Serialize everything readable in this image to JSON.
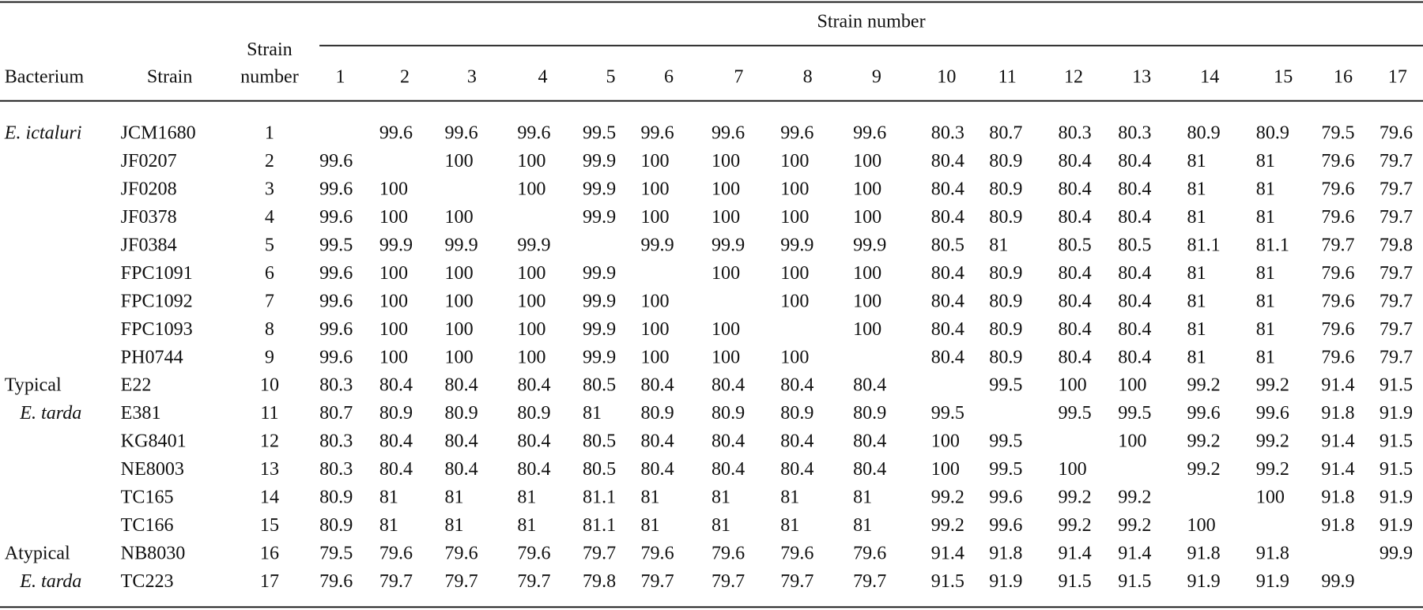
{
  "table": {
    "headers": {
      "bacterium": "Bacterium",
      "strain": "Strain",
      "strain_number": [
        "Strain",
        "number"
      ],
      "span": "Strain number",
      "columns": [
        1,
        2,
        3,
        4,
        5,
        6,
        7,
        8,
        9,
        10,
        11,
        12,
        13,
        14,
        15,
        16,
        17
      ]
    },
    "rows": [
      {
        "bacterium": "E. ictaluri",
        "strain": "JCM1680",
        "number": 1,
        "values": [
          null,
          99.6,
          99.6,
          99.6,
          99.5,
          99.6,
          99.6,
          99.6,
          99.6,
          80.3,
          80.7,
          80.3,
          80.3,
          80.9,
          80.9,
          79.5,
          79.6
        ]
      },
      {
        "strain": "JF0207",
        "number": 2,
        "values": [
          99.6,
          null,
          100,
          100,
          99.9,
          100,
          100,
          100,
          100,
          80.4,
          80.9,
          80.4,
          80.4,
          81,
          81,
          79.6,
          79.7
        ]
      },
      {
        "strain": "JF0208",
        "number": 3,
        "values": [
          99.6,
          100,
          null,
          100,
          99.9,
          100,
          100,
          100,
          100,
          80.4,
          80.9,
          80.4,
          80.4,
          81,
          81,
          79.6,
          79.7
        ]
      },
      {
        "strain": "JF0378",
        "number": 4,
        "values": [
          99.6,
          100,
          100,
          null,
          99.9,
          100,
          100,
          100,
          100,
          80.4,
          80.9,
          80.4,
          80.4,
          81,
          81,
          79.6,
          79.7
        ]
      },
      {
        "strain": "JF0384",
        "number": 5,
        "values": [
          99.5,
          99.9,
          99.9,
          99.9,
          null,
          99.9,
          99.9,
          99.9,
          99.9,
          80.5,
          81,
          80.5,
          80.5,
          81.1,
          81.1,
          79.7,
          79.8
        ]
      },
      {
        "strain": "FPC1091",
        "number": 6,
        "values": [
          99.6,
          100,
          100,
          100,
          99.9,
          null,
          100,
          100,
          100,
          80.4,
          80.9,
          80.4,
          80.4,
          81,
          81,
          79.6,
          79.7
        ]
      },
      {
        "strain": "FPC1092",
        "number": 7,
        "values": [
          99.6,
          100,
          100,
          100,
          99.9,
          100,
          null,
          100,
          100,
          80.4,
          80.9,
          80.4,
          80.4,
          81,
          81,
          79.6,
          79.7
        ]
      },
      {
        "strain": "FPC1093",
        "number": 8,
        "values": [
          99.6,
          100,
          100,
          100,
          99.9,
          100,
          100,
          null,
          100,
          80.4,
          80.9,
          80.4,
          80.4,
          81,
          81,
          79.6,
          79.7
        ]
      },
      {
        "strain": "PH0744",
        "number": 9,
        "values": [
          99.6,
          100,
          100,
          100,
          99.9,
          100,
          100,
          100,
          null,
          80.4,
          80.9,
          80.4,
          80.4,
          81,
          81,
          79.6,
          79.7
        ]
      },
      {
        "bacterium": "Typical",
        "strain": "E22",
        "number": 10,
        "values": [
          80.3,
          80.4,
          80.4,
          80.4,
          80.5,
          80.4,
          80.4,
          80.4,
          80.4,
          null,
          99.5,
          100,
          100,
          99.2,
          99.2,
          91.4,
          91.5
        ]
      },
      {
        "bacterium": "E. tarda",
        "strain": "E381",
        "number": 11,
        "values": [
          80.7,
          80.9,
          80.9,
          80.9,
          81,
          80.9,
          80.9,
          80.9,
          80.9,
          99.5,
          null,
          99.5,
          99.5,
          99.6,
          99.6,
          91.8,
          91.9
        ]
      },
      {
        "strain": "KG8401",
        "number": 12,
        "values": [
          80.3,
          80.4,
          80.4,
          80.4,
          80.5,
          80.4,
          80.4,
          80.4,
          80.4,
          100,
          99.5,
          null,
          100,
          99.2,
          99.2,
          91.4,
          91.5
        ]
      },
      {
        "strain": "NE8003",
        "number": 13,
        "values": [
          80.3,
          80.4,
          80.4,
          80.4,
          80.5,
          80.4,
          80.4,
          80.4,
          80.4,
          100,
          99.5,
          100,
          null,
          99.2,
          99.2,
          91.4,
          91.5
        ]
      },
      {
        "strain": "TC165",
        "number": 14,
        "values": [
          80.9,
          81,
          81,
          81,
          81.1,
          81,
          81,
          81,
          81,
          99.2,
          99.6,
          99.2,
          99.2,
          null,
          100,
          91.8,
          91.9
        ]
      },
      {
        "strain": "TC166",
        "number": 15,
        "values": [
          80.9,
          81,
          81,
          81,
          81.1,
          81,
          81,
          81,
          81,
          99.2,
          99.6,
          99.2,
          99.2,
          100,
          null,
          91.8,
          91.9
        ]
      },
      {
        "bacterium": "Atypical",
        "strain": "NB8030",
        "number": 16,
        "values": [
          79.5,
          79.6,
          79.6,
          79.6,
          79.7,
          79.6,
          79.6,
          79.6,
          79.6,
          91.4,
          91.8,
          91.4,
          91.4,
          91.8,
          91.8,
          null,
          99.9
        ]
      },
      {
        "bacterium": "E. tarda",
        "strain": "TC223",
        "number": 17,
        "values": [
          79.6,
          79.7,
          79.7,
          79.7,
          79.8,
          79.7,
          79.7,
          79.7,
          79.7,
          91.5,
          91.9,
          91.5,
          91.5,
          91.9,
          91.9,
          99.9,
          null
        ]
      }
    ]
  }
}
